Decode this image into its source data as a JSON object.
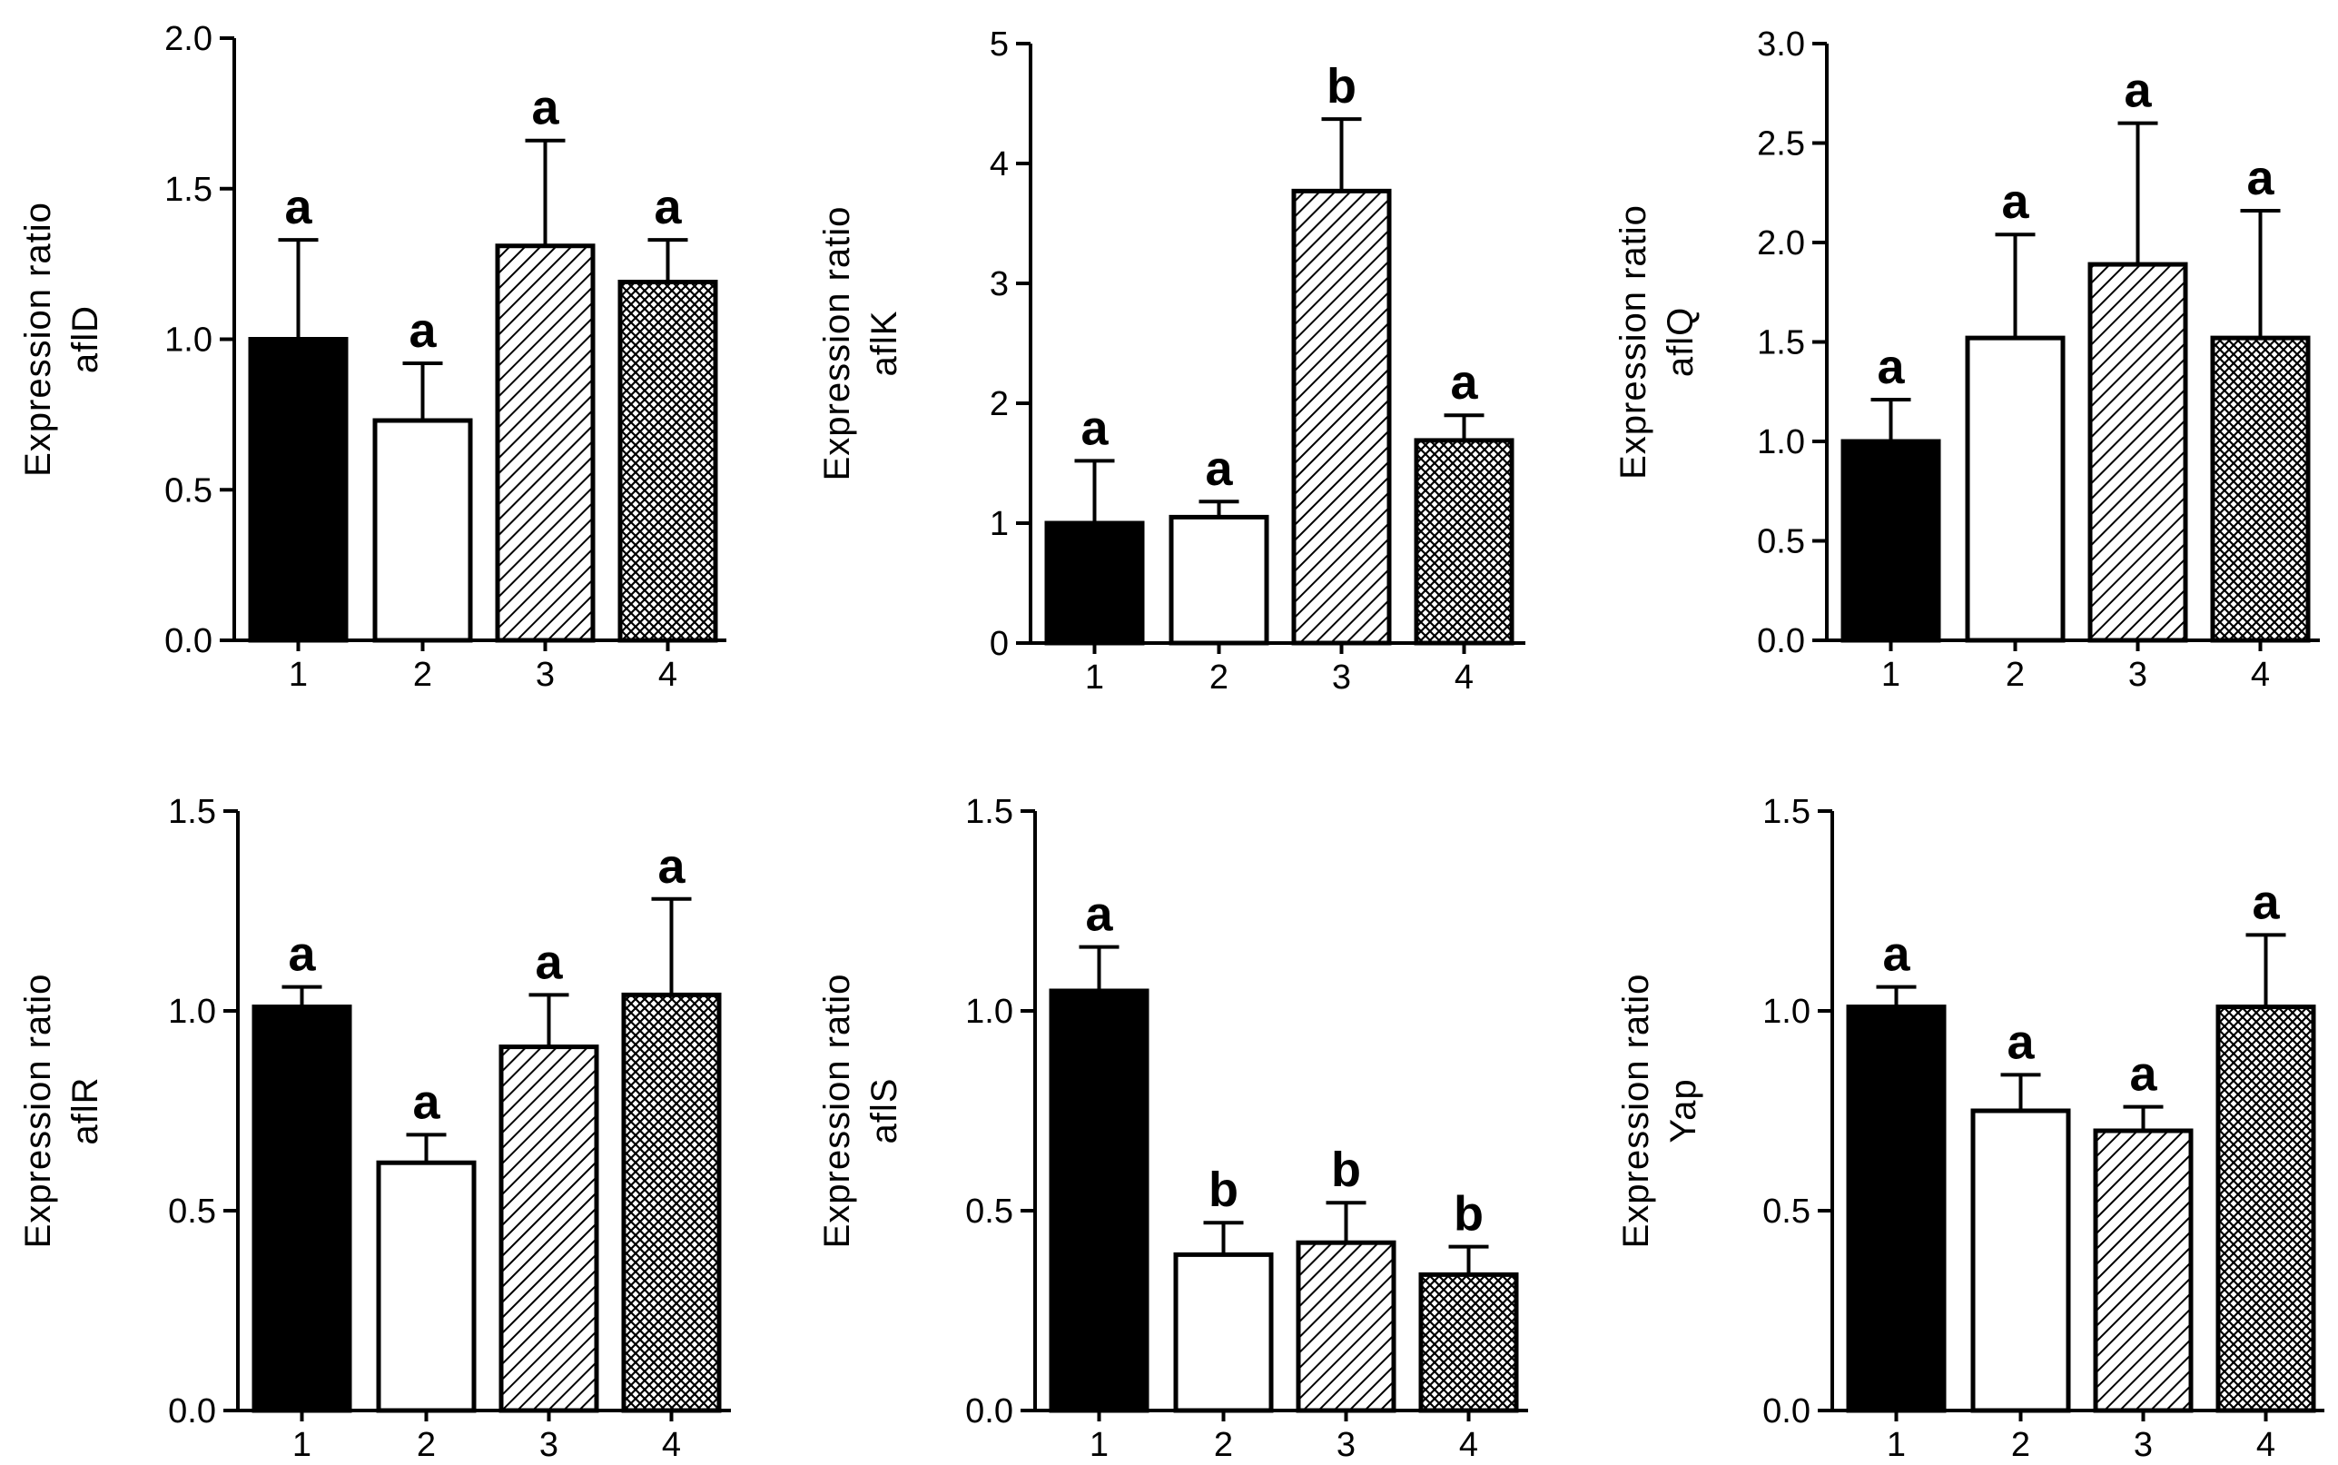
{
  "chart_data": [
    {
      "type": "bar",
      "ylabel": [
        "Expression ratio",
        "aflD"
      ],
      "categories": [
        "1",
        "2",
        "3",
        "4"
      ],
      "values": [
        1.0,
        0.73,
        1.31,
        1.19
      ],
      "errors": [
        0.33,
        0.19,
        0.35,
        0.14
      ],
      "significance": [
        "a",
        "a",
        "a",
        "a"
      ],
      "ylim": [
        0,
        2.0
      ],
      "yticks": [
        "0.0",
        "0.5",
        "1.0",
        "1.5",
        "2.0"
      ],
      "ytick_values": [
        0,
        0.5,
        1.0,
        1.5,
        2.0
      ]
    },
    {
      "type": "bar",
      "ylabel": [
        "Expression ratio",
        "aflK"
      ],
      "categories": [
        "1",
        "2",
        "3",
        "4"
      ],
      "values": [
        1.0,
        1.05,
        3.77,
        1.69
      ],
      "errors": [
        0.52,
        0.13,
        0.6,
        0.21
      ],
      "significance": [
        "a",
        "a",
        "b",
        "a"
      ],
      "ylim": [
        0,
        5
      ],
      "yticks": [
        "0",
        "1",
        "2",
        "3",
        "4",
        "5"
      ],
      "ytick_values": [
        0,
        1,
        2,
        3,
        4,
        5
      ]
    },
    {
      "type": "bar",
      "ylabel": [
        "Expression ratio",
        "aflQ"
      ],
      "categories": [
        "1",
        "2",
        "3",
        "4"
      ],
      "values": [
        1.0,
        1.52,
        1.89,
        1.52
      ],
      "errors": [
        0.21,
        0.52,
        0.71,
        0.64
      ],
      "significance": [
        "a",
        "a",
        "a",
        "a"
      ],
      "ylim": [
        0,
        3.0
      ],
      "yticks": [
        "0.0",
        "0.5",
        "1.0",
        "1.5",
        "2.0",
        "2.5",
        "3.0"
      ],
      "ytick_values": [
        0,
        0.5,
        1.0,
        1.5,
        2.0,
        2.5,
        3.0
      ]
    },
    {
      "type": "bar",
      "ylabel": [
        "Expression ratio",
        "aflR"
      ],
      "categories": [
        "1",
        "2",
        "3",
        "4"
      ],
      "values": [
        1.01,
        0.62,
        0.91,
        1.04
      ],
      "errors": [
        0.05,
        0.07,
        0.13,
        0.24
      ],
      "significance": [
        "a",
        "a",
        "a",
        "a"
      ],
      "ylim": [
        0,
        1.5
      ],
      "yticks": [
        "0.0",
        "0.5",
        "1.0",
        "1.5"
      ],
      "ytick_values": [
        0,
        0.5,
        1.0,
        1.5
      ]
    },
    {
      "type": "bar",
      "ylabel": [
        "Expression ratio",
        "aflS"
      ],
      "categories": [
        "1",
        "2",
        "3",
        "4"
      ],
      "values": [
        1.05,
        0.39,
        0.42,
        0.34
      ],
      "errors": [
        0.11,
        0.08,
        0.1,
        0.07
      ],
      "significance": [
        "a",
        "b",
        "b",
        "b"
      ],
      "ylim": [
        0,
        1.5
      ],
      "yticks": [
        "0.0",
        "0.5",
        "1.0",
        "1.5"
      ],
      "ytick_values": [
        0,
        0.5,
        1.0,
        1.5
      ]
    },
    {
      "type": "bar",
      "ylabel": [
        "Expression ratio",
        "Yap"
      ],
      "categories": [
        "1",
        "2",
        "3",
        "4"
      ],
      "values": [
        1.01,
        0.75,
        0.7,
        1.01
      ],
      "errors": [
        0.05,
        0.09,
        0.06,
        0.18
      ],
      "significance": [
        "a",
        "a",
        "a",
        "a"
      ],
      "ylim": [
        0,
        1.5
      ],
      "yticks": [
        "0.0",
        "0.5",
        "1.0",
        "1.5"
      ],
      "ytick_values": [
        0,
        0.5,
        1.0,
        1.5
      ]
    }
  ],
  "styles": {
    "bar_fills": [
      "solid-black",
      "white",
      "diagonal-hatch",
      "crosshatch"
    ],
    "ink": "#000000",
    "background": "#ffffff"
  }
}
